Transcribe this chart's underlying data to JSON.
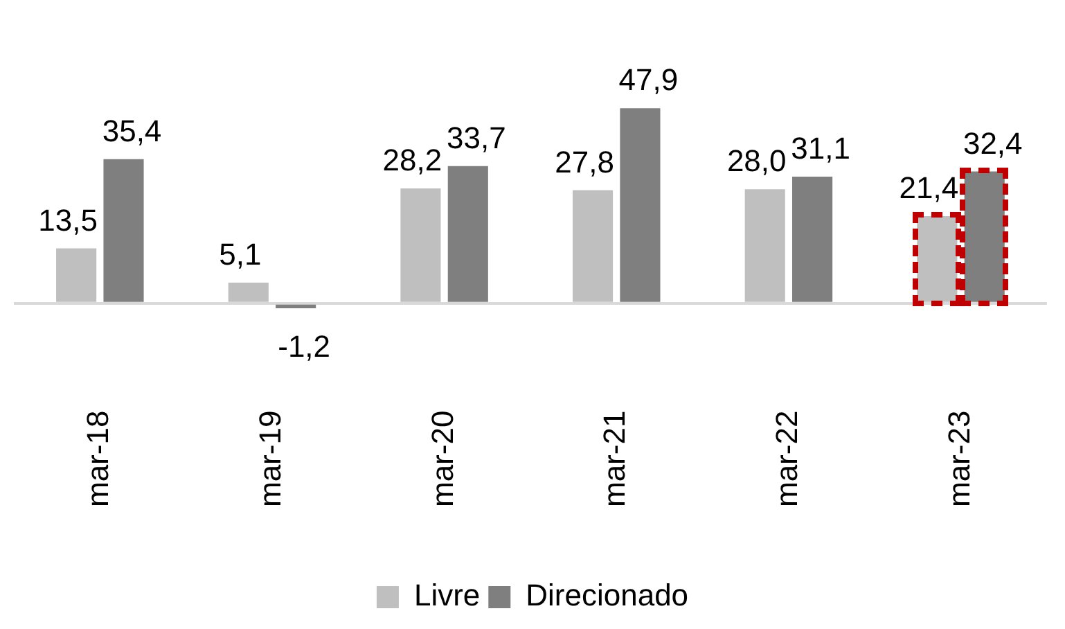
{
  "chart_data": {
    "type": "bar",
    "categories": [
      "mar-18",
      "mar-19",
      "mar-20",
      "mar-21",
      "mar-22",
      "mar-23"
    ],
    "series": [
      {
        "name": "Livre",
        "color": "#bfbfbf",
        "values": [
          13.5,
          5.1,
          28.2,
          27.8,
          28.0,
          21.4
        ],
        "value_labels": [
          "13,5",
          "5,1",
          "28,2",
          "27,8",
          "28,0",
          "21,4"
        ]
      },
      {
        "name": "Direcionado",
        "color": "#7f7f7f",
        "values": [
          35.4,
          -1.2,
          33.7,
          47.9,
          31.1,
          32.4
        ],
        "value_labels": [
          "35,4",
          "-1,2",
          "33,7",
          "47,9",
          "31,1",
          "32,4"
        ]
      }
    ],
    "tick_labels": "x",
    "legend": "bottom",
    "grid": false
  }
}
